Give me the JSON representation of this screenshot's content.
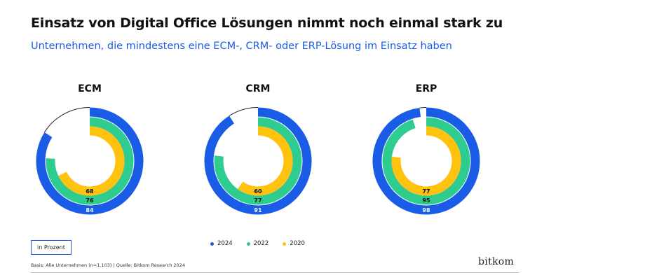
{
  "header": {
    "title": "Einsatz von Digital Office Lösungen nimmt noch einmal stark zu",
    "subtitle": "Unternehmen, die mindestens eine ECM-, CRM- oder ERP-Lösung im Einsatz haben"
  },
  "chart_data": {
    "type": "radial-bar",
    "unit": "in Prozent",
    "max": 100,
    "series_names": [
      "2024",
      "2022",
      "2020"
    ],
    "charts": [
      {
        "label": "ECM",
        "values": [
          84,
          76,
          68
        ]
      },
      {
        "label": "CRM",
        "values": [
          91,
          77,
          60
        ]
      },
      {
        "label": "ERP",
        "values": [
          98,
          95,
          77
        ]
      }
    ]
  },
  "legend": [
    {
      "label": "2024",
      "color": "#1a5ce6"
    },
    {
      "label": "2022",
      "color": "#2ecc8f"
    },
    {
      "label": "2020",
      "color": "#ffc20e"
    }
  ],
  "footer": {
    "unit_label": "in Prozent",
    "source": "Basis: Alle Unternehmen (n=1.103) | Quelle: Bitkom Research 2024",
    "logo": "bitkom"
  }
}
